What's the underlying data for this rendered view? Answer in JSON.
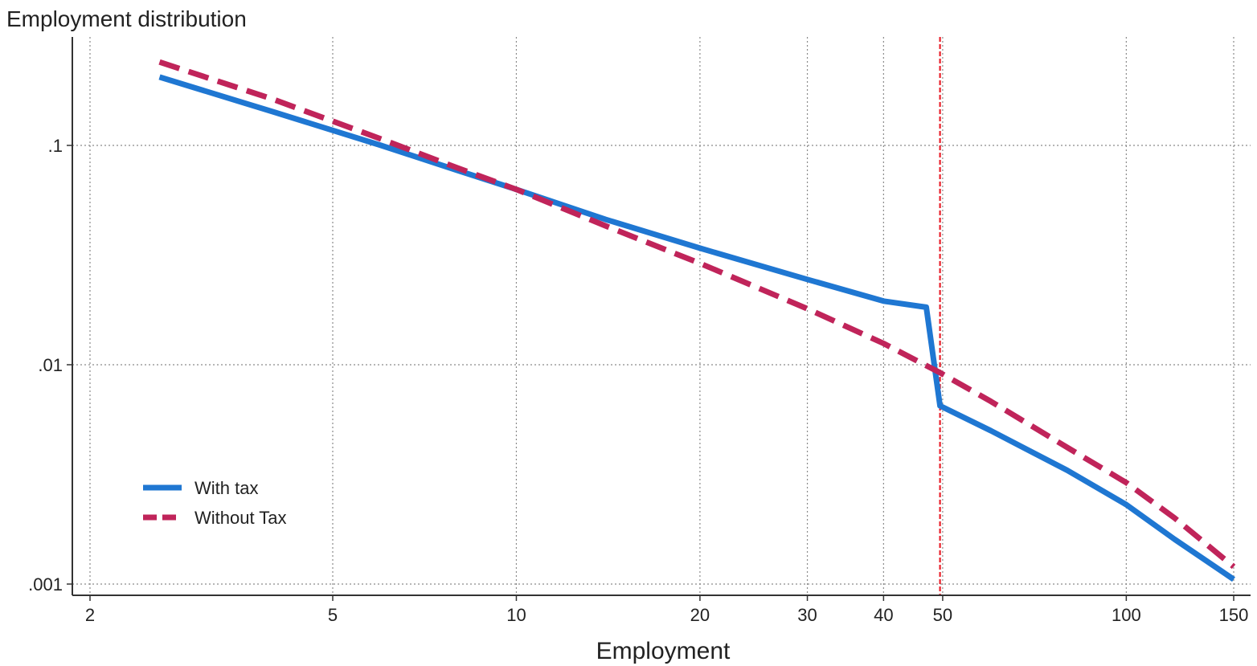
{
  "chart_data": {
    "type": "line",
    "title": "",
    "ylabel": "Employment distribution",
    "xlabel": "Employment",
    "x_scale": "log",
    "y_scale": "log",
    "xlim": [
      1.9,
      155
    ],
    "ylim": [
      0.00088,
      0.27
    ],
    "x_ticks": [
      {
        "value": 2,
        "label": "2"
      },
      {
        "value": 5,
        "label": "5"
      },
      {
        "value": 10,
        "label": "10"
      },
      {
        "value": 20,
        "label": "20"
      },
      {
        "value": 30,
        "label": "30"
      },
      {
        "value": 40,
        "label": "40"
      },
      {
        "value": 50,
        "label": "50"
      },
      {
        "value": 100,
        "label": "100"
      },
      {
        "value": 150,
        "label": "150"
      }
    ],
    "y_ticks": [
      {
        "value": 0.1,
        "label": ".1"
      },
      {
        "value": 0.01,
        "label": ".01"
      },
      {
        "value": 0.001,
        "label": ".001"
      }
    ],
    "grid": true,
    "reference_line": {
      "x": 49.5,
      "color": "#e8202a",
      "style": "dashed"
    },
    "legend_position": "bottom-left",
    "series": [
      {
        "name": "With tax",
        "color": "#1f77d2",
        "style": "solid",
        "x": [
          2.6,
          4,
          6,
          8,
          10,
          14,
          20,
          30,
          40,
          47,
          49.5,
          60,
          80,
          100,
          120,
          150
        ],
        "y": [
          0.205,
          0.142,
          0.1,
          0.077,
          0.063,
          0.046,
          0.034,
          0.0245,
          0.0195,
          0.0183,
          0.0065,
          0.005,
          0.0033,
          0.0023,
          0.0016,
          0.00105
        ]
      },
      {
        "name": "Without Tax",
        "color": "#c0245a",
        "style": "dashed",
        "x": [
          2.6,
          4,
          6,
          8,
          10,
          14,
          20,
          30,
          40,
          49.5,
          60,
          80,
          100,
          120,
          150
        ],
        "y": [
          0.24,
          0.162,
          0.107,
          0.079,
          0.063,
          0.043,
          0.029,
          0.018,
          0.0125,
          0.0092,
          0.0068,
          0.0042,
          0.0029,
          0.002,
          0.0012
        ]
      }
    ]
  }
}
